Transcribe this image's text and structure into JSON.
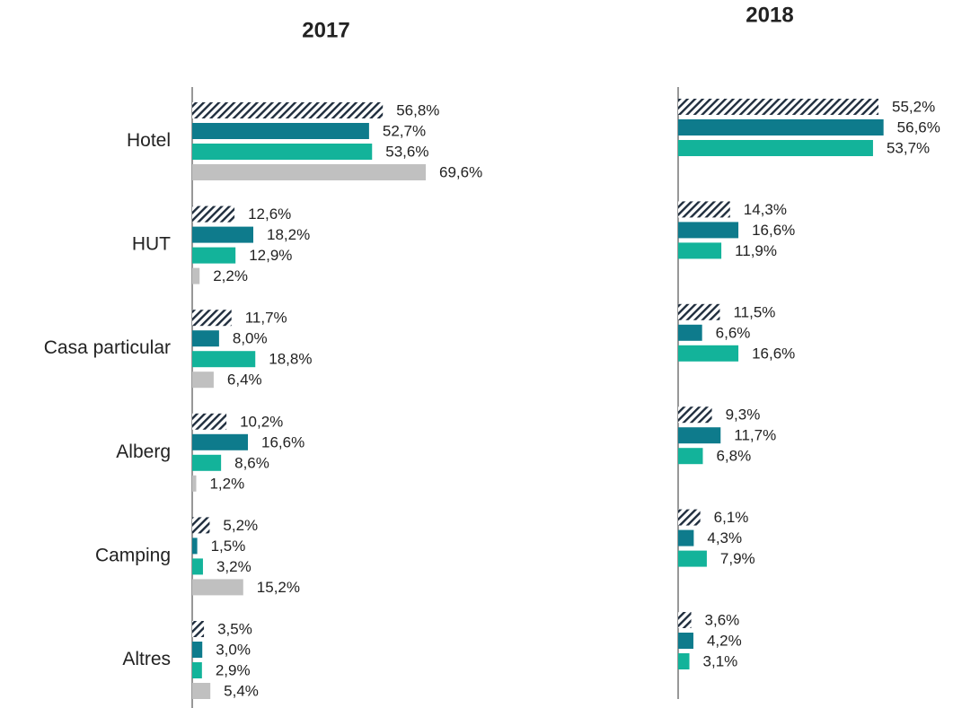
{
  "chart_data": [
    {
      "type": "bar",
      "orientation": "horizontal",
      "title": "2017",
      "categories": [
        "Hotel",
        "HUT",
        "Casa particular",
        "Alberg",
        "Camping",
        "Altres"
      ],
      "series": [
        {
          "color": "#1f2d3d",
          "pattern": "hatch",
          "values": [
            56.8,
            12.6,
            11.7,
            10.2,
            5.2,
            3.5
          ],
          "value_labels": [
            "56,8%",
            "12,6%",
            "11,7%",
            "10,2%",
            "5,2%",
            "3,5%"
          ]
        },
        {
          "color": "#0e7b8c",
          "values": [
            52.7,
            18.2,
            8.0,
            16.6,
            1.5,
            3.0
          ],
          "value_labels": [
            "52,7%",
            "18,2%",
            "8,0%",
            "16,6%",
            "1,5%",
            "3,0%"
          ]
        },
        {
          "color": "#13b39a",
          "values": [
            53.6,
            12.9,
            18.8,
            8.6,
            3.2,
            2.9
          ],
          "value_labels": [
            "53,6%",
            "12,9%",
            "18,8%",
            "8,6%",
            "3,2%",
            "2,9%"
          ]
        },
        {
          "color": "#c0c0c0",
          "values": [
            69.6,
            2.2,
            6.4,
            1.2,
            15.2,
            5.4
          ],
          "value_labels": [
            "69,6%",
            "2,2%",
            "6,4%",
            "1,2%",
            "15,2%",
            "5,4%"
          ]
        }
      ]
    },
    {
      "type": "bar",
      "orientation": "horizontal",
      "title": "2018",
      "categories": [
        null,
        null,
        null,
        null,
        null,
        null
      ],
      "series": [
        {
          "color": "#1f2d3d",
          "pattern": "hatch",
          "values": [
            55.2,
            14.3,
            11.5,
            9.3,
            6.1,
            3.6
          ],
          "value_labels": [
            "55,2%",
            "14,3%",
            "11,5%",
            "9,3%",
            "6,1%",
            "3,6%"
          ]
        },
        {
          "color": "#0e7b8c",
          "values": [
            56.6,
            16.6,
            6.6,
            11.7,
            4.3,
            4.2
          ],
          "value_labels": [
            "56,6%",
            "16,6%",
            "6,6%",
            "11,7%",
            "4,3%",
            "4,2%"
          ]
        },
        {
          "color": "#13b39a",
          "values": [
            53.7,
            11.9,
            16.6,
            6.8,
            7.9,
            3.1
          ],
          "value_labels": [
            "53,7%",
            "11,9%",
            "16,6%",
            "6,8%",
            "7,9%",
            "3,1%"
          ]
        }
      ]
    }
  ]
}
